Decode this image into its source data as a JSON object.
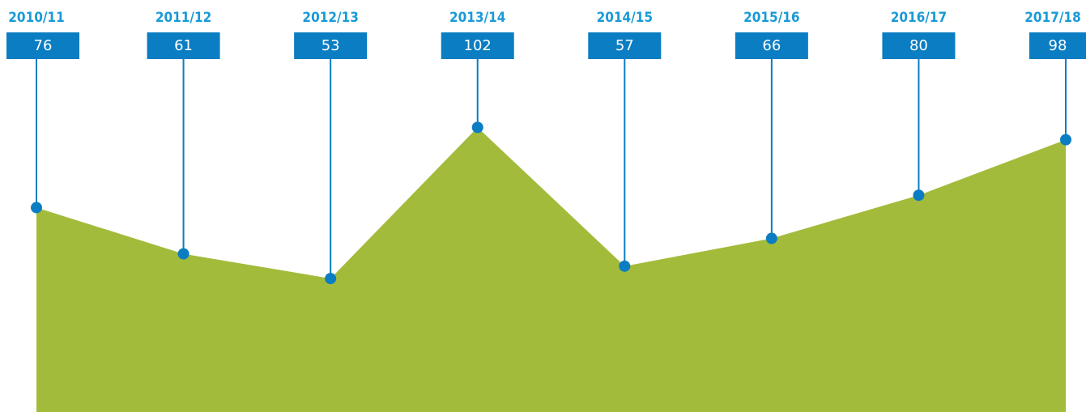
{
  "chart_data": {
    "type": "area",
    "categories": [
      "2010/11",
      "2011/12",
      "2012/13",
      "2013/14",
      "2014/15",
      "2015/16",
      "2016/17",
      "2017/18"
    ],
    "values": [
      76,
      61,
      53,
      102,
      57,
      66,
      80,
      98
    ],
    "color": "#a3bb3b",
    "marker_color": "#0b7dc2",
    "label_color": "#1a9ad6"
  }
}
